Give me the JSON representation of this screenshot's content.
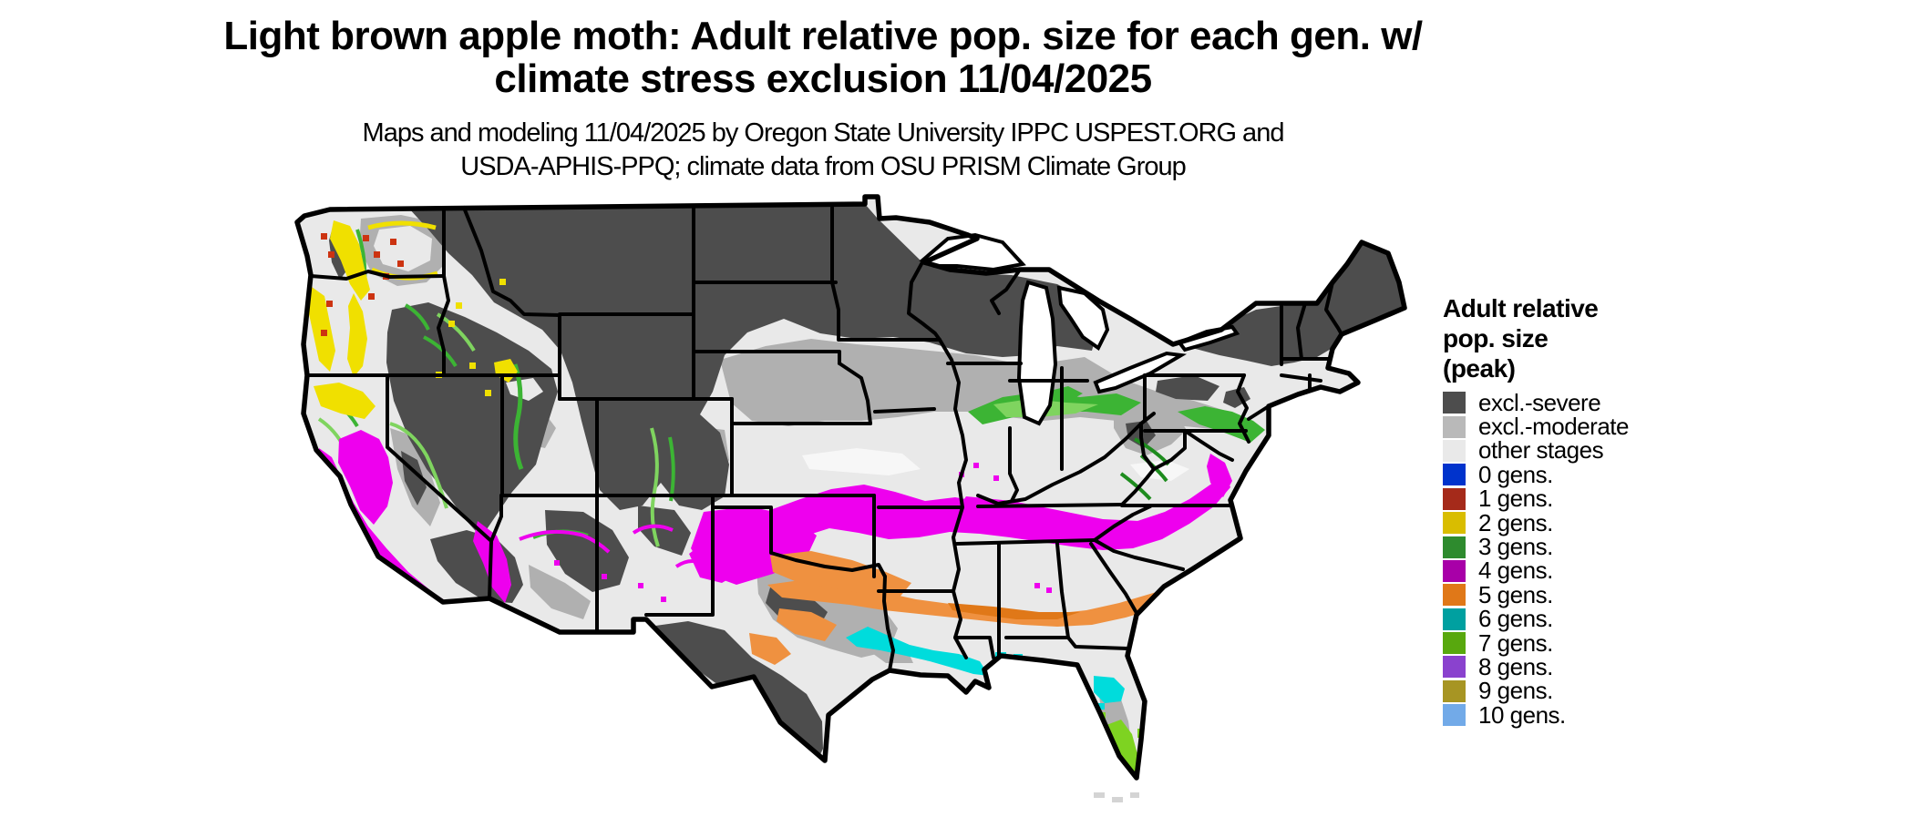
{
  "header": {
    "title_line1": "Light brown apple moth: Adult relative pop. size for each gen. w/",
    "title_line2": "climate stress exclusion 11/04/2025",
    "subtitle_line1": "Maps and modeling 11/04/2025 by Oregon State University IPPC USPEST.ORG and",
    "subtitle_line2": "USDA-APHIS-PPQ; climate data from OSU PRISM Climate Group"
  },
  "legend": {
    "title_line1": "Adult relative",
    "title_line2": "pop. size",
    "title_line3": "(peak)",
    "items": [
      {
        "label": "excl.-severe",
        "color": "#4d4d4d"
      },
      {
        "label": "excl.-moderate",
        "color": "#b9b9b9"
      },
      {
        "label": "other stages",
        "color": "#e9e9e9"
      },
      {
        "label": "0 gens.",
        "color": "#0033cc"
      },
      {
        "label": "1 gens.",
        "color": "#a52a1a"
      },
      {
        "label": "2 gens.",
        "color": "#d9bd00"
      },
      {
        "label": "3 gens.",
        "color": "#2e8b2e"
      },
      {
        "label": "4 gens.",
        "color": "#a800a8"
      },
      {
        "label": "5 gens.",
        "color": "#e07818"
      },
      {
        "label": "6 gens.",
        "color": "#00a0a0"
      },
      {
        "label": "7 gens.",
        "color": "#58a80e"
      },
      {
        "label": "8 gens.",
        "color": "#8a42ce"
      },
      {
        "label": "9 gens.",
        "color": "#a79523"
      },
      {
        "label": "10 gens.",
        "color": "#72aae8"
      }
    ]
  },
  "map": {
    "region": "Contiguous United States",
    "palette": {
      "severe": "#4d4d4d",
      "moderate": "#b0b0b0",
      "other": "#e9e9e9",
      "bright": "#f7f7f7",
      "gen1": "#cc3311",
      "gen2": "#f0e000",
      "gen3": "#3cb434",
      "gen3light": "#7fd45f",
      "gen3dark": "#1e8c1e",
      "gen4": "#ee00ee",
      "gen5": "#ef9140",
      "gen5dark": "#e07818",
      "gen6": "#00dcdc",
      "gen7": "#7ed321",
      "keys": "#d4d4d4",
      "water": "#ffffff",
      "border": "#000000"
    }
  }
}
